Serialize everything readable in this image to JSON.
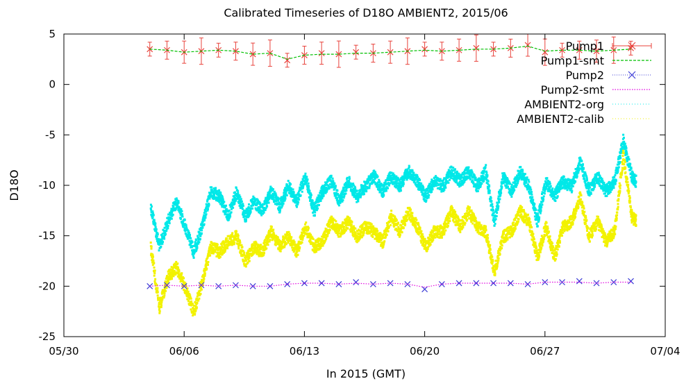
{
  "chart_data": {
    "type": "line",
    "title": "Calibrated Timeseries of D18O AMBIENT2, 2015/06",
    "xlabel": "In 2015 (GMT)",
    "ylabel": "D18O",
    "xlim": [
      "2015-05-30",
      "2015-07-04"
    ],
    "ylim": [
      -25,
      5
    ],
    "x_ticks": [
      {
        "date": "2015-05-30",
        "label": "05/30"
      },
      {
        "date": "2015-06-06",
        "label": "06/06"
      },
      {
        "date": "2015-06-13",
        "label": "06/13"
      },
      {
        "date": "2015-06-20",
        "label": "06/20"
      },
      {
        "date": "2015-06-27",
        "label": "06/27"
      },
      {
        "date": "2015-07-04",
        "label": "07/04"
      }
    ],
    "y_ticks": [
      5,
      0,
      -5,
      -10,
      -15,
      -20,
      -25
    ],
    "legend_position": "top-right",
    "grid": false,
    "series": [
      {
        "name": "Pump1",
        "style": "points-errorbars",
        "marker": "x",
        "color": "#e8413a",
        "x": [
          "2015-06-04",
          "2015-06-05",
          "2015-06-06",
          "2015-06-07",
          "2015-06-08",
          "2015-06-09",
          "2015-06-10",
          "2015-06-11",
          "2015-06-12",
          "2015-06-13",
          "2015-06-14",
          "2015-06-15",
          "2015-06-16",
          "2015-06-17",
          "2015-06-18",
          "2015-06-19",
          "2015-06-20",
          "2015-06-21",
          "2015-06-22",
          "2015-06-23",
          "2015-06-24",
          "2015-06-25",
          "2015-06-26",
          "2015-06-27",
          "2015-06-28",
          "2015-06-29",
          "2015-06-30",
          "2015-07-01",
          "2015-07-02"
        ],
        "y": [
          3.5,
          3.4,
          3.2,
          3.3,
          3.4,
          3.3,
          3.0,
          3.1,
          2.4,
          2.9,
          3.1,
          3.0,
          3.2,
          3.1,
          3.2,
          3.3,
          3.5,
          3.3,
          3.4,
          3.6,
          3.5,
          3.6,
          3.9,
          3.2,
          3.4,
          3.4,
          3.3,
          3.4,
          3.6
        ]
      },
      {
        "name": "Pump1-smt",
        "style": "dashed-line",
        "color": "#00c000",
        "x": [
          "2015-06-04",
          "2015-06-05",
          "2015-06-06",
          "2015-06-07",
          "2015-06-08",
          "2015-06-09",
          "2015-06-10",
          "2015-06-11",
          "2015-06-12",
          "2015-06-13",
          "2015-06-14",
          "2015-06-15",
          "2015-06-16",
          "2015-06-17",
          "2015-06-18",
          "2015-06-19",
          "2015-06-20",
          "2015-06-21",
          "2015-06-22",
          "2015-06-23",
          "2015-06-24",
          "2015-06-25",
          "2015-06-26",
          "2015-06-27",
          "2015-06-28",
          "2015-06-29",
          "2015-06-30",
          "2015-07-01",
          "2015-07-02"
        ],
        "y": [
          3.5,
          3.4,
          3.2,
          3.3,
          3.4,
          3.3,
          3.0,
          3.1,
          2.5,
          2.9,
          3.0,
          3.0,
          3.1,
          3.1,
          3.2,
          3.3,
          3.4,
          3.3,
          3.4,
          3.5,
          3.5,
          3.6,
          3.8,
          3.3,
          3.4,
          3.4,
          3.3,
          3.4,
          3.5
        ]
      },
      {
        "name": "Pump2",
        "style": "points",
        "marker": "x",
        "color": "#3b3bd6",
        "x": [
          "2015-06-04",
          "2015-06-05",
          "2015-06-06",
          "2015-06-07",
          "2015-06-08",
          "2015-06-09",
          "2015-06-10",
          "2015-06-11",
          "2015-06-12",
          "2015-06-13",
          "2015-06-14",
          "2015-06-15",
          "2015-06-16",
          "2015-06-17",
          "2015-06-18",
          "2015-06-19",
          "2015-06-20",
          "2015-06-21",
          "2015-06-22",
          "2015-06-23",
          "2015-06-24",
          "2015-06-25",
          "2015-06-26",
          "2015-06-27",
          "2015-06-28",
          "2015-06-29",
          "2015-06-30",
          "2015-07-01",
          "2015-07-02"
        ],
        "y": [
          -20.0,
          -19.9,
          -20.0,
          -19.9,
          -20.0,
          -19.9,
          -20.0,
          -20.0,
          -19.8,
          -19.7,
          -19.7,
          -19.8,
          -19.6,
          -19.8,
          -19.7,
          -19.8,
          -20.3,
          -19.8,
          -19.7,
          -19.7,
          -19.7,
          -19.7,
          -19.8,
          -19.6,
          -19.6,
          -19.5,
          -19.7,
          -19.6,
          -19.5
        ]
      },
      {
        "name": "Pump2-smt",
        "style": "dotted-line",
        "color": "#e000e0",
        "x": [
          "2015-06-04",
          "2015-06-05",
          "2015-06-06",
          "2015-06-07",
          "2015-06-08",
          "2015-06-09",
          "2015-06-10",
          "2015-06-11",
          "2015-06-12",
          "2015-06-13",
          "2015-06-14",
          "2015-06-15",
          "2015-06-16",
          "2015-06-17",
          "2015-06-18",
          "2015-06-19",
          "2015-06-20",
          "2015-06-21",
          "2015-06-22",
          "2015-06-23",
          "2015-06-24",
          "2015-06-25",
          "2015-06-26",
          "2015-06-27",
          "2015-06-28",
          "2015-06-29",
          "2015-06-30",
          "2015-07-01",
          "2015-07-02"
        ],
        "y": [
          -20.0,
          -19.9,
          -20.0,
          -19.9,
          -20.0,
          -19.9,
          -20.0,
          -20.0,
          -19.8,
          -19.7,
          -19.7,
          -19.8,
          -19.7,
          -19.8,
          -19.7,
          -19.8,
          -20.1,
          -19.8,
          -19.7,
          -19.7,
          -19.7,
          -19.7,
          -19.8,
          -19.6,
          -19.6,
          -19.6,
          -19.7,
          -19.6,
          -19.6
        ]
      },
      {
        "name": "AMBIENT2-org",
        "style": "dense-points",
        "color": "#00e8e8",
        "x": [
          "2015-06-04",
          "2015-06-04 12:00",
          "2015-06-05",
          "2015-06-05 12:00",
          "2015-06-06",
          "2015-06-06 12:00",
          "2015-06-07",
          "2015-06-07 12:00",
          "2015-06-08",
          "2015-06-08 12:00",
          "2015-06-09",
          "2015-06-09 12:00",
          "2015-06-10",
          "2015-06-10 12:00",
          "2015-06-11",
          "2015-06-11 12:00",
          "2015-06-12",
          "2015-06-12 12:00",
          "2015-06-13",
          "2015-06-13 12:00",
          "2015-06-14",
          "2015-06-14 12:00",
          "2015-06-15",
          "2015-06-15 12:00",
          "2015-06-16",
          "2015-06-16 12:00",
          "2015-06-17",
          "2015-06-17 12:00",
          "2015-06-18",
          "2015-06-18 12:00",
          "2015-06-19",
          "2015-06-19 12:00",
          "2015-06-20",
          "2015-06-20 12:00",
          "2015-06-21",
          "2015-06-21 12:00",
          "2015-06-22",
          "2015-06-22 12:00",
          "2015-06-23",
          "2015-06-23 12:00",
          "2015-06-24",
          "2015-06-24 12:00",
          "2015-06-25",
          "2015-06-25 12:00",
          "2015-06-26",
          "2015-06-26 12:00",
          "2015-06-27",
          "2015-06-27 12:00",
          "2015-06-28",
          "2015-06-28 12:00",
          "2015-06-29",
          "2015-06-29 12:00",
          "2015-06-30",
          "2015-06-30 12:00",
          "2015-07-01",
          "2015-07-01 12:00",
          "2015-07-02",
          "2015-07-02 06:00"
        ],
        "y": [
          -12.0,
          -16.0,
          -13.5,
          -11.5,
          -14.0,
          -16.5,
          -14.0,
          -10.5,
          -11.0,
          -13.0,
          -10.5,
          -13.0,
          -11.5,
          -12.5,
          -10.5,
          -12.0,
          -10.0,
          -11.5,
          -9.0,
          -12.5,
          -10.5,
          -9.5,
          -11.5,
          -9.5,
          -11.0,
          -10.0,
          -9.0,
          -10.5,
          -9.0,
          -10.0,
          -8.5,
          -9.5,
          -11.0,
          -9.5,
          -10.0,
          -8.5,
          -9.5,
          -8.5,
          -10.0,
          -8.5,
          -13.5,
          -9.0,
          -10.5,
          -8.5,
          -10.0,
          -13.5,
          -9.5,
          -11.0,
          -9.5,
          -10.0,
          -7.5,
          -10.5,
          -9.0,
          -10.5,
          -9.5,
          -5.5,
          -9.0,
          -9.5
        ]
      },
      {
        "name": "AMBIENT2-calib",
        "style": "dense-points",
        "color": "#f2f200",
        "x": [
          "2015-06-04",
          "2015-06-04 12:00",
          "2015-06-05",
          "2015-06-05 12:00",
          "2015-06-06",
          "2015-06-06 12:00",
          "2015-06-07",
          "2015-06-07 12:00",
          "2015-06-08",
          "2015-06-08 12:00",
          "2015-06-09",
          "2015-06-09 12:00",
          "2015-06-10",
          "2015-06-10 12:00",
          "2015-06-11",
          "2015-06-11 12:00",
          "2015-06-12",
          "2015-06-12 12:00",
          "2015-06-13",
          "2015-06-13 12:00",
          "2015-06-14",
          "2015-06-14 12:00",
          "2015-06-15",
          "2015-06-15 12:00",
          "2015-06-16",
          "2015-06-16 12:00",
          "2015-06-17",
          "2015-06-17 12:00",
          "2015-06-18",
          "2015-06-18 12:00",
          "2015-06-19",
          "2015-06-19 12:00",
          "2015-06-20",
          "2015-06-20 12:00",
          "2015-06-21",
          "2015-06-21 12:00",
          "2015-06-22",
          "2015-06-22 12:00",
          "2015-06-23",
          "2015-06-23 12:00",
          "2015-06-24",
          "2015-06-24 12:00",
          "2015-06-25",
          "2015-06-25 12:00",
          "2015-06-26",
          "2015-06-26 12:00",
          "2015-06-27",
          "2015-06-27 12:00",
          "2015-06-28",
          "2015-06-28 12:00",
          "2015-06-29",
          "2015-06-29 12:00",
          "2015-06-30",
          "2015-06-30 12:00",
          "2015-07-01",
          "2015-07-01 12:00",
          "2015-07-02",
          "2015-07-02 06:00"
        ],
        "y": [
          -16.0,
          -22.0,
          -19.0,
          -18.0,
          -20.0,
          -22.5,
          -19.5,
          -16.0,
          -16.5,
          -15.5,
          -15.0,
          -17.5,
          -16.0,
          -16.5,
          -14.5,
          -16.0,
          -15.0,
          -16.5,
          -14.0,
          -16.0,
          -15.5,
          -13.5,
          -14.5,
          -13.5,
          -15.0,
          -14.0,
          -14.5,
          -15.5,
          -13.0,
          -14.5,
          -12.5,
          -14.0,
          -16.0,
          -14.5,
          -14.5,
          -12.5,
          -14.0,
          -12.5,
          -14.0,
          -14.5,
          -18.5,
          -15.0,
          -14.5,
          -12.5,
          -13.5,
          -17.0,
          -14.0,
          -17.0,
          -14.0,
          -13.5,
          -11.0,
          -15.0,
          -13.5,
          -15.5,
          -14.5,
          -7.0,
          -13.0,
          -13.5
        ]
      }
    ]
  }
}
